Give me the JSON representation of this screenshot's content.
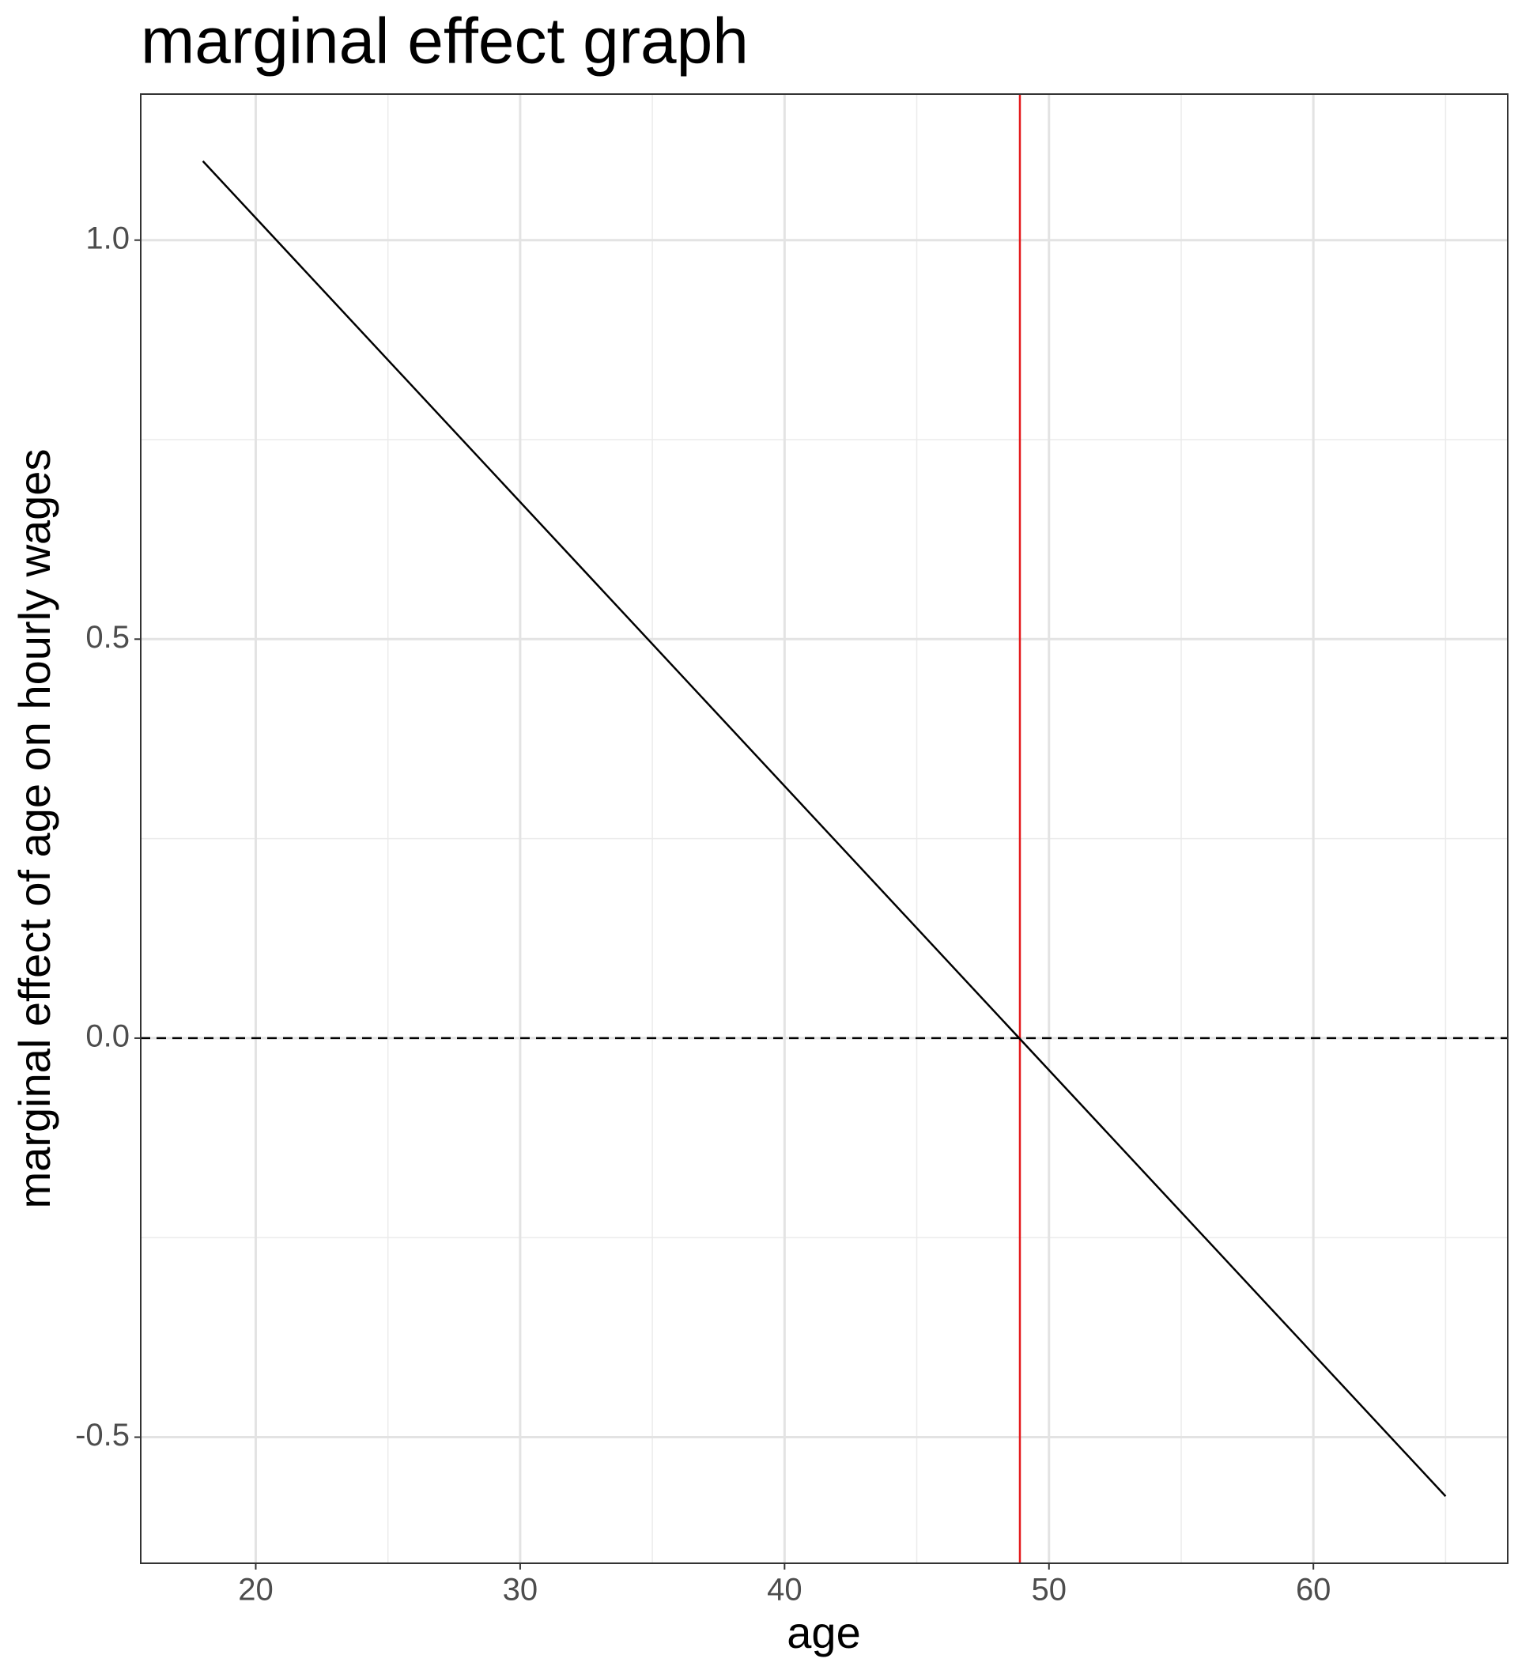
{
  "chart_data": {
    "type": "line",
    "title": "marginal effect graph",
    "x_label": "age",
    "y_label": "marginal effect of age on hourly wages",
    "series": [
      {
        "color": "#000000",
        "x": [
          18,
          65
        ],
        "values": [
          1.099,
          -0.574
        ]
      }
    ],
    "xlim": [
      15.65,
      67.35
    ],
    "xticks": [
      20,
      30,
      40,
      50,
      60
    ],
    "xminor_ticks": [
      25,
      35,
      45,
      55,
      65
    ],
    "ylim": [
      -0.658,
      1.183
    ],
    "yticks": [
      {
        "value": -0.5,
        "label": "-0.5"
      },
      {
        "value": 0,
        "label": "0.0"
      },
      {
        "value": 0.5,
        "label": "0.5"
      },
      {
        "value": 1,
        "label": "1.0"
      }
    ],
    "yminor_ticks": [
      -0.25,
      0.25,
      0.75
    ],
    "hline": {
      "value": 0,
      "color": "#000000",
      "dashed": true
    },
    "vline": {
      "value": 48.9,
      "color": "#e41a1c"
    },
    "grid": true
  }
}
